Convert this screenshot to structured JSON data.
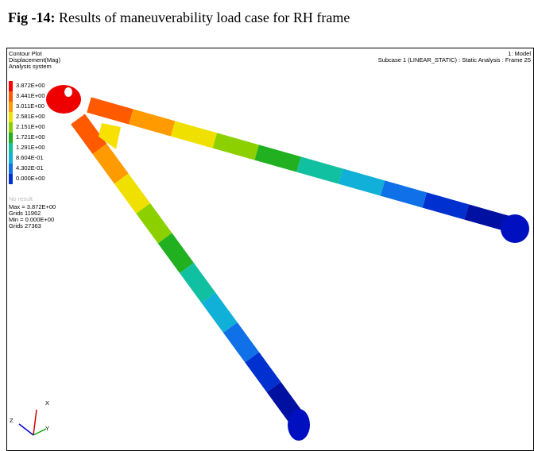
{
  "caption": {
    "label": "Fig -14:",
    "text": "Results of maneuverability load case for RH frame"
  },
  "figure": {
    "header": [
      "Contour Plot",
      "Displacement(Mag)",
      "Analysis system"
    ],
    "legend": [
      "3.872E+00",
      "3.441E+00",
      "3.011E+00",
      "2.581E+00",
      "2.151E+00",
      "1.721E+00",
      "1.291E+00",
      "8.604E-01",
      "4.302E-01",
      "0.000E+00"
    ],
    "no_result": "No result",
    "stats": [
      "Max = 3.872E+00",
      "Grids 11962",
      "Min = 0.000E+00",
      "Grids 27363"
    ],
    "model": "1: Model",
    "subcase": "Subcase 1 (LINEAR_STATIC) : Static Analysis : Frame 25",
    "axes": [
      "X",
      "Y",
      "Z"
    ]
  }
}
